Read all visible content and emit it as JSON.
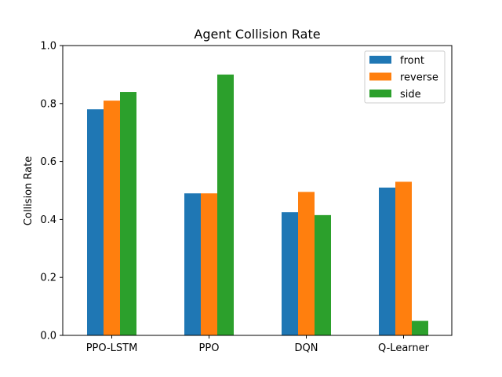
{
  "chart_data": {
    "type": "bar",
    "title": "Agent Collision Rate",
    "xlabel": "",
    "ylabel": "Collision Rate",
    "categories": [
      "PPO-LSTM",
      "PPO",
      "DQN",
      "Q-Learner"
    ],
    "series": [
      {
        "name": "front",
        "color": "#1f77b4",
        "values": [
          0.78,
          0.49,
          0.425,
          0.51
        ]
      },
      {
        "name": "reverse",
        "color": "#ff7f0e",
        "values": [
          0.81,
          0.49,
          0.495,
          0.53
        ]
      },
      {
        "name": "side",
        "color": "#2ca02c",
        "values": [
          0.84,
          0.9,
          0.415,
          0.05
        ]
      }
    ],
    "ylim": [
      0,
      1.0
    ],
    "yticks": [
      "0.0",
      "0.2",
      "0.4",
      "0.6",
      "0.8",
      "1.0"
    ],
    "grid": false,
    "legend_position": "top-right"
  }
}
